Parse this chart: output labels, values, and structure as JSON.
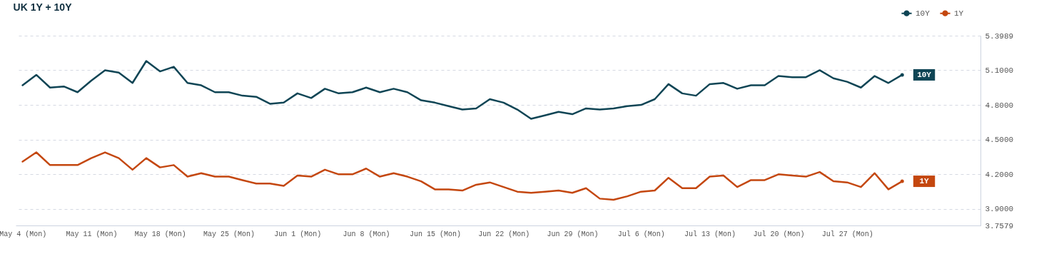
{
  "chart_data": {
    "type": "line",
    "title": "UK 1Y + 10Y",
    "categories": [
      "May 4 (Mon)",
      null,
      null,
      null,
      null,
      "May 11 (Mon)",
      null,
      null,
      null,
      null,
      "May 18 (Mon)",
      null,
      null,
      null,
      null,
      "May 25 (Mon)",
      null,
      null,
      null,
      null,
      "Jun 1 (Mon)",
      null,
      null,
      null,
      null,
      "Jun 8 (Mon)",
      null,
      null,
      null,
      null,
      "Jun 15 (Mon)",
      null,
      null,
      null,
      null,
      "Jun 22 (Mon)",
      null,
      null,
      null,
      null,
      "Jun 29 (Mon)",
      null,
      null,
      null,
      null,
      "Jul 6 (Mon)",
      null,
      null,
      null,
      null,
      "Jul 13 (Mon)",
      null,
      null,
      null,
      null,
      "Jul 20 (Mon)",
      null,
      null,
      null,
      null,
      "Jul 27 (Mon)",
      null,
      null,
      null,
      null
    ],
    "series": [
      {
        "name": "10Y",
        "color": "#0f4555",
        "values": [
          4.97,
          5.06,
          4.95,
          4.96,
          4.91,
          5.01,
          5.1,
          5.08,
          4.99,
          5.18,
          5.09,
          5.13,
          4.99,
          4.97,
          4.91,
          4.91,
          4.88,
          4.87,
          4.81,
          4.82,
          4.9,
          4.86,
          4.94,
          4.9,
          4.91,
          4.95,
          4.91,
          4.94,
          4.91,
          4.84,
          4.82,
          4.79,
          4.76,
          4.77,
          4.85,
          4.82,
          4.76,
          4.68,
          4.71,
          4.74,
          4.72,
          4.77,
          4.76,
          4.77,
          4.79,
          4.8,
          4.85,
          4.98,
          4.9,
          4.88,
          4.98,
          4.99,
          4.94,
          4.97,
          4.97,
          5.05,
          5.04,
          5.04,
          5.1,
          5.03,
          5.0,
          4.95,
          5.05,
          4.99,
          5.06
        ]
      },
      {
        "name": "1Y",
        "color": "#c4470f",
        "values": [
          4.31,
          4.39,
          4.28,
          4.28,
          4.28,
          4.34,
          4.39,
          4.34,
          4.24,
          4.34,
          4.26,
          4.28,
          4.18,
          4.21,
          4.18,
          4.18,
          4.15,
          4.12,
          4.12,
          4.1,
          4.19,
          4.18,
          4.24,
          4.2,
          4.2,
          4.25,
          4.18,
          4.21,
          4.18,
          4.14,
          4.07,
          4.07,
          4.06,
          4.11,
          4.13,
          4.09,
          4.05,
          4.04,
          4.05,
          4.06,
          4.04,
          4.08,
          3.99,
          3.98,
          4.01,
          4.05,
          4.06,
          4.17,
          4.08,
          4.08,
          4.18,
          4.19,
          4.09,
          4.15,
          4.15,
          4.2,
          4.19,
          4.18,
          4.22,
          4.14,
          4.13,
          4.09,
          4.21,
          4.07,
          4.14
        ]
      }
    ],
    "ylim": [
      3.7579,
      5.3989
    ],
    "yticks": [
      3.7579,
      {
        "value": 3.9,
        "label": "3.9000"
      },
      {
        "value": 4.2,
        "label": "4.2000"
      },
      {
        "value": 4.5,
        "label": "4.5000"
      },
      {
        "value": 4.8,
        "label": "4.8000"
      },
      {
        "value": 5.1,
        "label": "5.1000"
      },
      5.3989
    ],
    "grid": "y",
    "legend": "top right",
    "line_style": "solid"
  }
}
